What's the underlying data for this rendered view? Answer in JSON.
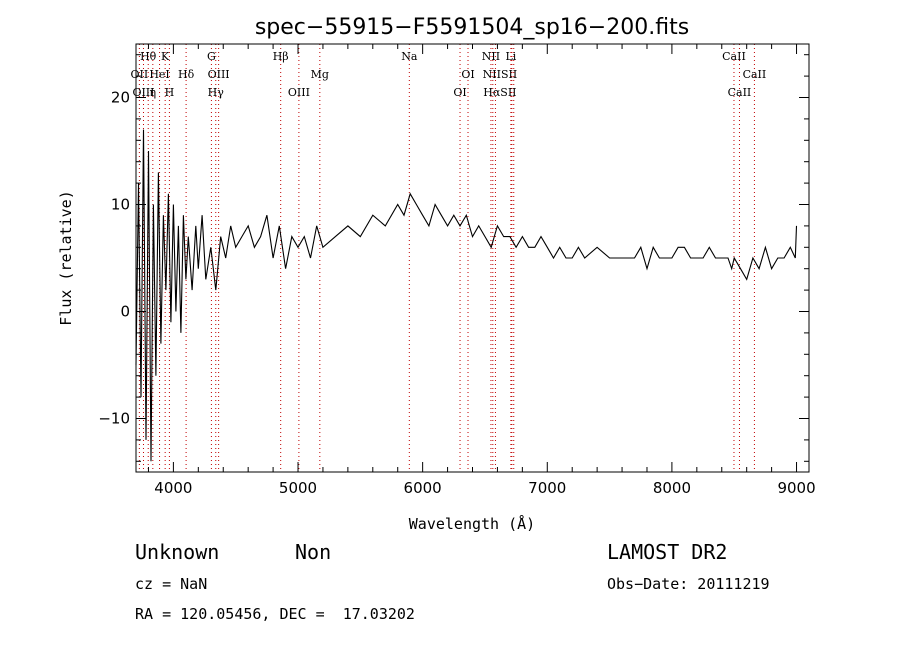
{
  "chart_data": {
    "type": "line",
    "title": "spec−55915−F5591504_sp16−200.fits",
    "xlabel": "Wavelength (Å)",
    "ylabel": "Flux (relative)",
    "xlim": [
      3700,
      9100
    ],
    "ylim": [
      -15,
      25
    ],
    "xticks": [
      4000,
      5000,
      6000,
      7000,
      8000,
      9000
    ],
    "xtick_labels": [
      "4000",
      "5000",
      "6000",
      "7000",
      "8000",
      "9000"
    ],
    "yticks": [
      -10,
      0,
      10,
      20
    ],
    "ytick_labels": [
      "−10",
      "0",
      "10",
      "20"
    ],
    "grid": false,
    "series": [
      {
        "x": [
          3700,
          3720,
          3740,
          3760,
          3780,
          3800,
          3820,
          3840,
          3860,
          3880,
          3900,
          3920,
          3940,
          3960,
          3980,
          4000,
          4020,
          4040,
          4060,
          4080,
          4100,
          4120,
          4150,
          4180,
          4200,
          4230,
          4260,
          4300,
          4340,
          4380,
          4420,
          4460,
          4500,
          4550,
          4600,
          4650,
          4700,
          4750,
          4800,
          4850,
          4900,
          4950,
          5000,
          5050,
          5100,
          5150,
          5200,
          5300,
          5400,
          5500,
          5600,
          5700,
          5800,
          5850,
          5900,
          5950,
          6000,
          6050,
          6100,
          6150,
          6200,
          6250,
          6300,
          6350,
          6400,
          6450,
          6500,
          6550,
          6600,
          6650,
          6700,
          6750,
          6800,
          6850,
          6900,
          6950,
          7000,
          7050,
          7100,
          7150,
          7200,
          7250,
          7300,
          7400,
          7500,
          7600,
          7700,
          7750,
          7800,
          7850,
          7900,
          7950,
          8000,
          8050,
          8100,
          8150,
          8200,
          8250,
          8300,
          8350,
          8400,
          8450,
          8480,
          8500,
          8550,
          8600,
          8650,
          8700,
          8750,
          8800,
          8850,
          8900,
          8950,
          8990,
          9000
        ],
        "y": [
          -5,
          12,
          -8,
          17,
          -12,
          15,
          -14,
          10,
          -6,
          13,
          -3,
          9,
          2,
          11,
          -1,
          10,
          0,
          8,
          -2,
          9,
          3,
          7,
          2,
          8,
          4,
          9,
          3,
          6,
          2,
          7,
          5,
          8,
          6,
          7,
          8,
          6,
          7,
          9,
          5,
          8,
          4,
          7,
          6,
          7,
          5,
          8,
          6,
          7,
          8,
          7,
          9,
          8,
          10,
          9,
          11,
          10,
          9,
          8,
          10,
          9,
          8,
          9,
          8,
          9,
          7,
          8,
          7,
          6,
          8,
          7,
          7,
          6,
          7,
          6,
          6,
          7,
          6,
          5,
          6,
          5,
          5,
          6,
          5,
          6,
          5,
          5,
          5,
          6,
          4,
          6,
          5,
          5,
          5,
          6,
          6,
          5,
          5,
          5,
          6,
          5,
          5,
          5,
          4,
          5,
          4,
          3,
          5,
          4,
          6,
          4,
          5,
          5,
          6,
          5,
          8
        ]
      }
    ],
    "annotations": [
      {
        "text": "Hθ",
        "x": 3798,
        "row": 0
      },
      {
        "text": "K",
        "x": 3934,
        "row": 0
      },
      {
        "text": "G",
        "x": 4305,
        "row": 0
      },
      {
        "text": "Hβ",
        "x": 4861,
        "row": 0
      },
      {
        "text": "Na",
        "x": 5893,
        "row": 0
      },
      {
        "text": "NII",
        "x": 6548,
        "row": 0
      },
      {
        "text": "Li",
        "x": 6708,
        "row": 0
      },
      {
        "text": "CaII",
        "x": 8498,
        "row": 0
      },
      {
        "text": "OII",
        "x": 3727,
        "row": 1
      },
      {
        "text": "HeI",
        "x": 3889,
        "row": 1
      },
      {
        "text": "Hδ",
        "x": 4102,
        "row": 1
      },
      {
        "text": "OIII",
        "x": 4363,
        "row": 1
      },
      {
        "text": "Mg",
        "x": 5175,
        "row": 1
      },
      {
        "text": "OI",
        "x": 6364,
        "row": 1
      },
      {
        "text": "NIISII",
        "x": 6620,
        "row": 1
      },
      {
        "text": "CaII",
        "x": 8662,
        "row": 1
      },
      {
        "text": "OIII",
        "x": 3760,
        "row": 2
      },
      {
        "text": "η",
        "x": 3835,
        "row": 2
      },
      {
        "text": "H",
        "x": 3968,
        "row": 2
      },
      {
        "text": "Hγ",
        "x": 4340,
        "row": 2
      },
      {
        "text": "OIII",
        "x": 5007,
        "row": 2
      },
      {
        "text": "OI",
        "x": 6300,
        "row": 2
      },
      {
        "text": "HαSII",
        "x": 6620,
        "row": 2
      },
      {
        "text": "CaII",
        "x": 8542,
        "row": 2
      }
    ],
    "dotted_lines": [
      3727,
      3760,
      3798,
      3835,
      3889,
      3934,
      3968,
      4102,
      4305,
      4340,
      4363,
      4861,
      5007,
      5175,
      5893,
      6300,
      6364,
      6548,
      6563,
      6584,
      6708,
      6716,
      6731,
      8498,
      8542,
      8662
    ]
  },
  "info": {
    "object_class": "Unknown",
    "subclass": "Non",
    "survey": "LAMOST DR2",
    "cz": "cz = NaN",
    "obs_date": "Obs−Date: 20111219",
    "coords": "RA = 120.05456, DEC =  17.03202"
  }
}
